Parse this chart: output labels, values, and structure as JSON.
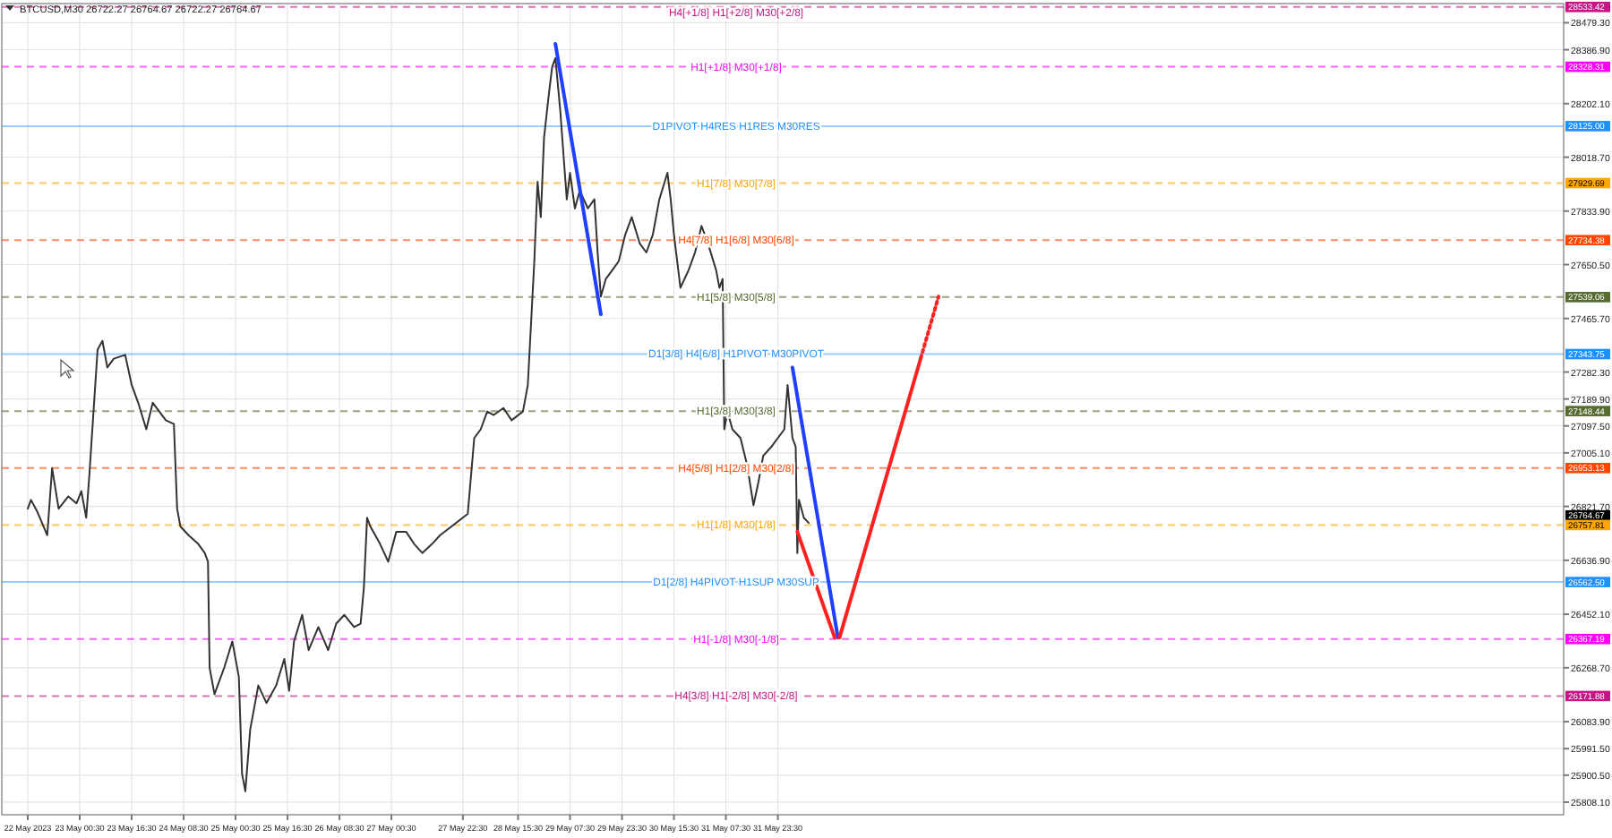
{
  "chart_data": {
    "type": "line",
    "title": "BTCUSD,M30  26722.27 26764.67 26722.27 26764.67",
    "xlim": [
      "2023-05-22T00:30",
      "2023-06-11T01:30"
    ],
    "xticks": [
      {
        "value": "2023-05-22T08:30",
        "label": "22 May 2023"
      },
      {
        "value": "2023-05-23T00:30",
        "label": "23 May 00:30"
      },
      {
        "value": "2023-05-23T16:30",
        "label": "23 May 16:30"
      },
      {
        "value": "2023-05-24T08:30",
        "label": "24 May 08:30"
      },
      {
        "value": "2023-05-25T00:30",
        "label": "25 May 00:30"
      },
      {
        "value": "2023-05-25T16:30",
        "label": "25 May 16:30"
      },
      {
        "value": "2023-05-26T08:30",
        "label": "26 May 08:30"
      },
      {
        "value": "2023-05-27T00:30",
        "label": "27 May 00:30"
      },
      {
        "value": "2023-05-27T22:30",
        "label": "27 May 22:30"
      },
      {
        "value": "2023-05-28T15:30",
        "label": "28 May 15:30"
      },
      {
        "value": "2023-05-29T07:30",
        "label": "29 May 07:30"
      },
      {
        "value": "2023-05-29T23:30",
        "label": "29 May 23:30"
      },
      {
        "value": "2023-05-30T15:30",
        "label": "30 May 15:30"
      },
      {
        "value": "2023-05-31T07:30",
        "label": "31 May 07:30"
      },
      {
        "value": "2023-05-31T23:30",
        "label": "31 May 23:30"
      }
    ],
    "ylim": [
      25765,
      28545
    ],
    "yticks": [
      {
        "value": 28479.3,
        "label": "28479.30"
      },
      {
        "value": 28386.9,
        "label": "28386.90"
      },
      {
        "value": 28202.1,
        "label": "28202.10"
      },
      {
        "value": 28018.7,
        "label": "28018.70"
      },
      {
        "value": 27833.9,
        "label": "27833.90"
      },
      {
        "value": 27650.5,
        "label": "27650.50"
      },
      {
        "value": 27465.7,
        "label": "27465.70"
      },
      {
        "value": 27282.3,
        "label": "27282.30"
      },
      {
        "value": 27189.9,
        "label": "27189.90"
      },
      {
        "value": 27097.5,
        "label": "27097.50"
      },
      {
        "value": 27005.1,
        "label": "27005.10"
      },
      {
        "value": 26821.7,
        "label": "26821.70"
      },
      {
        "value": 26636.9,
        "label": "26636.90"
      },
      {
        "value": 26452.1,
        "label": "26452.10"
      },
      {
        "value": 26268.7,
        "label": "26268.70"
      },
      {
        "value": 26083.9,
        "label": "26083.90"
      },
      {
        "value": 25991.5,
        "label": "25991.50"
      },
      {
        "value": 25900.5,
        "label": "25900.50"
      },
      {
        "value": 25808.1,
        "label": "25808.10"
      }
    ],
    "grid": true,
    "ref_lines": [
      {
        "axis": "y",
        "value": 28533.42,
        "label": "H4[+1/8] H1[+2/8] M30[+2/8]",
        "color": "#c71585",
        "line_style": "dashed"
      },
      {
        "axis": "y",
        "value": 28328.31,
        "label": "H1[+1/8] M30[+1/8]",
        "color": "#ff00ff",
        "line_style": "dashed"
      },
      {
        "axis": "y",
        "value": 28125.0,
        "label": "D1PIVOT H4RES H1RES M30RES",
        "color": "#1e90ff",
        "line_style": "solid"
      },
      {
        "axis": "y",
        "value": 27929.69,
        "label": "H1[7/8] M30[7/8]",
        "color": "#ffa500",
        "line_style": "dashed"
      },
      {
        "axis": "y",
        "value": 27734.38,
        "label": "H4[7/8] H1[6/8] M30[6/8]",
        "color": "#ff4500",
        "line_style": "dashed"
      },
      {
        "axis": "y",
        "value": 27539.06,
        "label": "H1[5/8] M30[5/8]",
        "color": "#556b2f",
        "line_style": "dashed"
      },
      {
        "axis": "y",
        "value": 27343.75,
        "label": "D1[3/8] H4[6/8] H1PIVOT M30PIVOT",
        "color": "#1e90ff",
        "line_style": "solid"
      },
      {
        "axis": "y",
        "value": 27148.44,
        "label": "H1[3/8] M30[3/8]",
        "color": "#556b2f",
        "line_style": "dashed"
      },
      {
        "axis": "y",
        "value": 26953.13,
        "label": "H4[5/8] H1[2/8] M30[2/8]",
        "color": "#ff4500",
        "line_style": "dashed"
      },
      {
        "axis": "y",
        "value": 26757.81,
        "label": "H1[1/8] M30[1/8]",
        "color": "#ffa500",
        "line_style": "dashed"
      },
      {
        "axis": "y",
        "value": 26562.5,
        "label": "D1[2/8] H4PIVOT H1SUP M30SUP",
        "color": "#1e90ff",
        "line_style": "solid"
      },
      {
        "axis": "y",
        "value": 26367.19,
        "label": "H1[-1/8] M30[-1/8]",
        "color": "#ff00ff",
        "line_style": "dashed"
      },
      {
        "axis": "y",
        "value": 26171.88,
        "label": "H4[3/8] H1[-2/8] M30[-2/8]",
        "color": "#c71585",
        "line_style": "dashed"
      }
    ],
    "annotations": [
      "28533.42",
      "28328.31",
      "28125.00",
      "27929.69",
      "27734.38",
      "27539.06",
      "27343.75",
      "27148.44",
      "26953.13",
      "26757.81",
      "26562.50",
      "26367.19",
      "26171.88",
      "26764.67"
    ],
    "series": [
      {
        "color": "#333333",
        "line_style": "solid",
        "x": [
          "2023-05-22T08:30",
          "2023-05-22T09:30",
          "2023-05-22T11:30",
          "2023-05-22T14:30",
          "2023-05-22T16:00",
          "2023-05-22T18:00",
          "2023-05-22T21:00",
          "2023-05-22T23:30",
          "2023-05-23T01:00",
          "2023-05-23T02:30",
          "2023-05-23T03:30",
          "2023-05-23T06:00",
          "2023-05-23T07:30",
          "2023-05-23T09:00",
          "2023-05-23T11:00",
          "2023-05-23T14:30",
          "2023-05-23T16:30",
          "2023-05-23T18:30",
          "2023-05-23T21:00",
          "2023-05-23T23:00",
          "2023-05-24T01:00",
          "2023-05-24T03:00",
          "2023-05-24T05:30",
          "2023-05-24T06:30",
          "2023-05-24T07:30",
          "2023-05-24T10:00",
          "2023-05-24T13:00",
          "2023-05-24T15:00",
          "2023-05-24T16:00",
          "2023-05-24T16:30",
          "2023-05-24T18:00",
          "2023-05-24T21:00",
          "2023-05-24T23:30",
          "2023-05-25T01:30",
          "2023-05-25T02:30",
          "2023-05-25T03:30",
          "2023-05-25T05:00",
          "2023-05-25T07:30",
          "2023-05-25T10:00",
          "2023-05-25T13:00",
          "2023-05-25T15:30",
          "2023-05-25T17:00",
          "2023-05-25T18:30",
          "2023-05-25T21:00",
          "2023-05-25T23:00",
          "2023-05-26T02:00",
          "2023-05-26T05:00",
          "2023-05-26T07:30",
          "2023-05-26T10:00",
          "2023-05-26T13:00",
          "2023-05-26T15:00",
          "2023-05-26T16:00",
          "2023-05-26T17:00",
          "2023-05-26T18:00",
          "2023-05-26T21:00",
          "2023-05-26T23:30",
          "2023-05-27T02:00",
          "2023-05-27T05:00",
          "2023-05-27T07:30",
          "2023-05-27T10:00",
          "2023-05-27T13:00",
          "2023-05-27T15:30",
          "2023-05-28T00:00",
          "2023-05-28T02:00",
          "2023-05-28T04:00",
          "2023-05-28T06:00",
          "2023-05-28T08:00",
          "2023-05-28T11:00",
          "2023-05-28T13:30",
          "2023-05-28T17:00",
          "2023-05-28T18:30",
          "2023-05-28T20:30",
          "2023-05-28T21:30",
          "2023-05-28T22:30",
          "2023-05-28T23:30",
          "2023-05-29T01:00",
          "2023-05-29T02:00",
          "2023-05-29T03:00",
          "2023-05-29T04:30",
          "2023-05-29T05:30",
          "2023-05-29T06:30",
          "2023-05-29T07:30",
          "2023-05-29T09:00",
          "2023-05-29T10:30",
          "2023-05-29T13:00",
          "2023-05-29T15:00",
          "2023-05-29T16:00",
          "2023-05-29T17:00",
          "2023-05-29T18:30",
          "2023-05-29T20:30",
          "2023-05-29T22:30",
          "2023-05-30T00:30",
          "2023-05-30T02:30",
          "2023-05-30T05:00",
          "2023-05-30T07:00",
          "2023-05-30T09:00",
          "2023-05-30T11:00",
          "2023-05-30T13:30",
          "2023-05-30T14:30",
          "2023-05-30T15:30",
          "2023-05-30T17:30",
          "2023-05-30T20:00",
          "2023-05-30T22:00",
          "2023-05-31T00:00",
          "2023-05-31T02:00",
          "2023-05-31T04:30",
          "2023-05-31T05:30",
          "2023-05-31T06:30",
          "2023-05-31T07:00",
          "2023-05-31T08:00",
          "2023-05-31T09:30",
          "2023-05-31T12:00",
          "2023-05-31T14:00",
          "2023-05-31T16:00",
          "2023-05-31T17:30",
          "2023-05-31T19:00",
          "2023-05-31T21:30",
          "2023-05-31T23:30",
          "2023-06-01T01:30",
          "2023-06-01T02:30",
          "2023-06-01T04:00",
          "2023-06-01T05:00",
          "2023-06-01T05:30",
          "2023-06-01T06:00",
          "2023-06-01T07:30",
          "2023-06-01T09:00"
        ],
        "values": [
          26814,
          26844,
          26802,
          26723,
          26953,
          26814,
          26856,
          26832,
          26874,
          26783,
          26935,
          27359,
          27389,
          27298,
          27328,
          27341,
          27238,
          27177,
          27086,
          27177,
          27147,
          27117,
          27104,
          26814,
          26753,
          26723,
          26693,
          26662,
          26632,
          26269,
          26178,
          26269,
          26359,
          26238,
          25905,
          25845,
          26057,
          26208,
          26148,
          26208,
          26299,
          26190,
          26359,
          26450,
          26329,
          26408,
          26329,
          26420,
          26450,
          26408,
          26420,
          26541,
          26783,
          26753,
          26693,
          26632,
          26735,
          26735,
          26693,
          26662,
          26693,
          26723,
          26796,
          27056,
          27086,
          27147,
          27135,
          27159,
          27117,
          27147,
          27238,
          27662,
          27934,
          27813,
          28086,
          28237,
          28328,
          28358,
          28177,
          28025,
          27874,
          27965,
          27843,
          27904,
          27843,
          27874,
          27692,
          27541,
          27601,
          27631,
          27662,
          27753,
          27813,
          27722,
          27692,
          27753,
          27874,
          27965,
          27874,
          27753,
          27571,
          27631,
          27692,
          27783,
          27722,
          27631,
          27571,
          27601,
          27086,
          27147,
          27086,
          27056,
          26965,
          26826,
          26904,
          26995,
          27026,
          27056,
          27086,
          27238,
          27056,
          27026,
          26662,
          26844,
          26783,
          26765
        ]
      },
      {
        "color": "#2040ff",
        "line_style": "solid",
        "x": [
          "2023-05-29T03:00",
          "2023-05-29T17:00"
        ],
        "values": [
          28407,
          27480
        ]
      },
      {
        "color": "#2040ff",
        "line_style": "solid",
        "x": [
          "2023-06-01T04:00",
          "2023-06-01T18:00"
        ],
        "values": [
          27298,
          26372
        ]
      },
      {
        "color": "#ff2020",
        "line_style": "solid",
        "x": [
          "2023-06-01T05:30",
          "2023-06-01T17:00"
        ],
        "values": [
          26735,
          26372
        ]
      },
      {
        "color": "#ff2020",
        "line_style": "solid",
        "x": [
          "2023-06-01T18:30",
          "2023-06-02T19:30"
        ],
        "values": [
          26372,
          27329
        ]
      },
      {
        "color": "#ff2020",
        "line_style": "dotted",
        "x": [
          "2023-06-02T19:30",
          "2023-06-03T01:00"
        ],
        "values": [
          27329,
          27541
        ]
      }
    ]
  }
}
